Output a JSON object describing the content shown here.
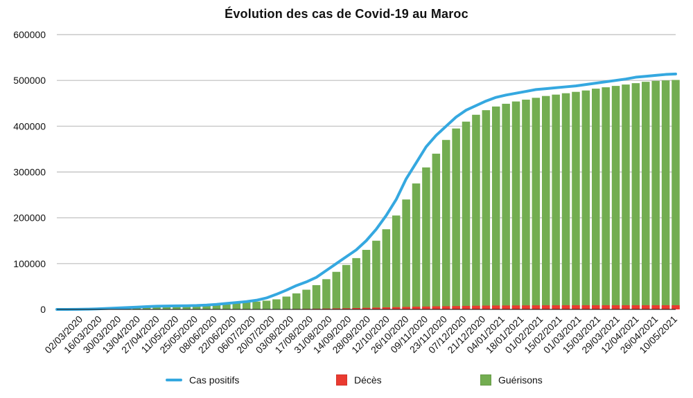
{
  "chart_data": {
    "type": "bar",
    "title": "Évolution des cas de Covid-19 au Maroc",
    "xlabel": "",
    "ylabel": "",
    "ylim": [
      0,
      600000
    ],
    "yticks": [
      0,
      100000,
      200000,
      300000,
      400000,
      500000,
      600000
    ],
    "ytick_labels": [
      "0",
      "100000",
      "200000",
      "300000",
      "400000",
      "500000",
      "600000"
    ],
    "x": [
      "02/03/2020",
      "09/03/2020",
      "16/03/2020",
      "23/03/2020",
      "30/03/2020",
      "06/04/2020",
      "13/04/2020",
      "20/04/2020",
      "27/04/2020",
      "04/05/2020",
      "11/05/2020",
      "18/05/2020",
      "25/05/2020",
      "01/06/2020",
      "08/06/2020",
      "15/06/2020",
      "22/06/2020",
      "29/06/2020",
      "06/07/2020",
      "13/07/2020",
      "20/07/2020",
      "27/07/2020",
      "03/08/2020",
      "10/08/2020",
      "17/08/2020",
      "24/08/2020",
      "31/08/2020",
      "07/09/2020",
      "14/09/2020",
      "21/09/2020",
      "28/09/2020",
      "05/10/2020",
      "12/10/2020",
      "19/10/2020",
      "26/10/2020",
      "02/11/2020",
      "09/11/2020",
      "16/11/2020",
      "23/11/2020",
      "30/11/2020",
      "07/12/2020",
      "14/12/2020",
      "21/12/2020",
      "28/12/2020",
      "04/01/2021",
      "11/01/2021",
      "18/01/2021",
      "25/01/2021",
      "01/02/2021",
      "08/02/2021",
      "15/02/2021",
      "22/02/2021",
      "01/03/2021",
      "08/03/2021",
      "15/03/2021",
      "22/03/2021",
      "29/03/2021",
      "05/04/2021",
      "12/04/2021",
      "19/04/2021",
      "26/04/2021",
      "03/05/2021",
      "10/05/2021"
    ],
    "xtick_labels": [
      "02/03/2020",
      "16/03/2020",
      "30/03/2020",
      "13/04/2020",
      "27/04/2020",
      "11/05/2020",
      "25/05/2020",
      "08/06/2020",
      "22/06/2020",
      "06/07/2020",
      "20/07/2020",
      "03/08/2020",
      "17/08/2020",
      "31/08/2020",
      "14/09/2020",
      "28/09/2020",
      "12/10/2020",
      "26/10/2020",
      "09/11/2020",
      "23/11/2020",
      "07/12/2020",
      "21/12/2020",
      "04/01/2021",
      "18/01/2021",
      "01/02/2021",
      "15/02/2021",
      "01/03/2021",
      "15/03/2021",
      "29/03/2021",
      "12/04/2021",
      "26/04/2021",
      "10/05/2021"
    ],
    "series": [
      {
        "name": "Cas positifs",
        "kind": "line",
        "color": "#35a8e0",
        "values": [
          1,
          50,
          150,
          500,
          1200,
          2000,
          3000,
          4000,
          5000,
          6000,
          7000,
          7300,
          7700,
          8000,
          8500,
          9500,
          11000,
          13000,
          15000,
          17000,
          20000,
          25000,
          33000,
          42000,
          52000,
          60000,
          70000,
          85000,
          100000,
          115000,
          130000,
          150000,
          175000,
          205000,
          240000,
          285000,
          320000,
          355000,
          380000,
          400000,
          420000,
          435000,
          445000,
          455000,
          463000,
          468000,
          472000,
          476000,
          480000,
          482000,
          484000,
          486000,
          488000,
          491000,
          494000,
          497000,
          500000,
          503000,
          507000,
          509000,
          511000,
          513000,
          514000
        ]
      },
      {
        "name": "Décès",
        "kind": "bar",
        "color": "#ea3a30",
        "values": [
          0,
          0,
          5,
          30,
          70,
          150,
          180,
          190,
          195,
          195,
          195,
          200,
          205,
          210,
          212,
          220,
          230,
          250,
          270,
          300,
          350,
          450,
          650,
          800,
          1000,
          1200,
          1500,
          1800,
          2200,
          2500,
          3000,
          3500,
          4000,
          4500,
          5000,
          5500,
          6000,
          6300,
          6800,
          7000,
          7300,
          7700,
          8000,
          8300,
          8500,
          8600,
          8700,
          8800,
          8900,
          9000,
          9000,
          9100,
          9100,
          9100,
          9100,
          9100,
          9100,
          9100,
          9100,
          9100,
          9100,
          9100,
          9100
        ]
      },
      {
        "name": "Guérisons",
        "kind": "bar",
        "color": "#73ad51",
        "values": [
          0,
          0,
          0,
          100,
          400,
          800,
          1500,
          2500,
          3500,
          4500,
          5200,
          5800,
          6500,
          7000,
          7500,
          8500,
          9500,
          11000,
          13000,
          15000,
          17000,
          19000,
          22000,
          28000,
          35000,
          43000,
          53000,
          66000,
          82000,
          97000,
          112000,
          130000,
          150000,
          175000,
          205000,
          240000,
          275000,
          310000,
          340000,
          370000,
          395000,
          410000,
          425000,
          435000,
          443000,
          449000,
          454000,
          458000,
          462000,
          466000,
          469000,
          472000,
          475000,
          478000,
          482000,
          485000,
          488000,
          491000,
          494000,
          497000,
          499000,
          500000,
          501000
        ]
      }
    ],
    "legend_position": "bottom",
    "grid": true
  }
}
